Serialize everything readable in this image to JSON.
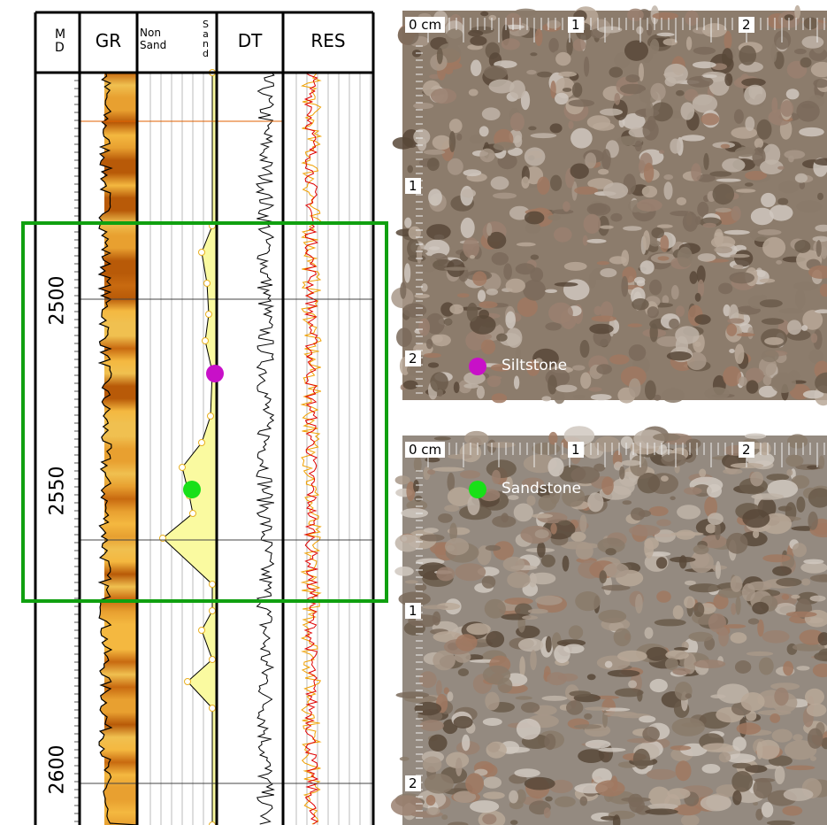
{
  "log": {
    "md": "MD",
    "headers": {
      "gr": "GR",
      "non_sand": "Non Sand",
      "sand": "Sand",
      "dt": "DT",
      "res": "RES"
    },
    "depth_labels": [
      "2500",
      "2550",
      "2600"
    ]
  },
  "photos": [
    {
      "scale_top": [
        "0 cm",
        "1",
        "2"
      ],
      "scale_left": [
        "1",
        "2"
      ],
      "label": "Siltstone"
    },
    {
      "scale_top": [
        "0 cm",
        "1",
        "2"
      ],
      "scale_left": [
        "1",
        "2"
      ],
      "label": "Sandstone"
    }
  ]
}
